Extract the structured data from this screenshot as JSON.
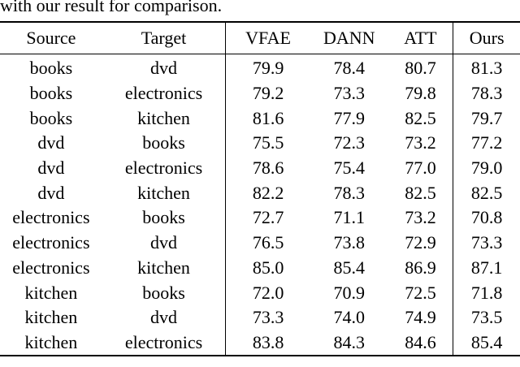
{
  "caption": "with our result for comparison.",
  "table": {
    "headers": [
      "Source",
      "Target",
      "VFAE",
      "DANN",
      "ATT",
      "Ours"
    ],
    "rows": [
      [
        "books",
        "dvd",
        "79.9",
        "78.4",
        "80.7",
        "81.3"
      ],
      [
        "books",
        "electronics",
        "79.2",
        "73.3",
        "79.8",
        "78.3"
      ],
      [
        "books",
        "kitchen",
        "81.6",
        "77.9",
        "82.5",
        "79.7"
      ],
      [
        "dvd",
        "books",
        "75.5",
        "72.3",
        "73.2",
        "77.2"
      ],
      [
        "dvd",
        "electronics",
        "78.6",
        "75.4",
        "77.0",
        "79.0"
      ],
      [
        "dvd",
        "kitchen",
        "82.2",
        "78.3",
        "82.5",
        "82.5"
      ],
      [
        "electronics",
        "books",
        "72.7",
        "71.1",
        "73.2",
        "70.8"
      ],
      [
        "electronics",
        "dvd",
        "76.5",
        "73.8",
        "72.9",
        "73.3"
      ],
      [
        "electronics",
        "kitchen",
        "85.0",
        "85.4",
        "86.9",
        "87.1"
      ],
      [
        "kitchen",
        "books",
        "72.0",
        "70.9",
        "72.5",
        "71.8"
      ],
      [
        "kitchen",
        "dvd",
        "73.3",
        "74.0",
        "74.9",
        "73.5"
      ],
      [
        "kitchen",
        "electronics",
        "83.8",
        "84.3",
        "84.6",
        "85.4"
      ]
    ]
  }
}
